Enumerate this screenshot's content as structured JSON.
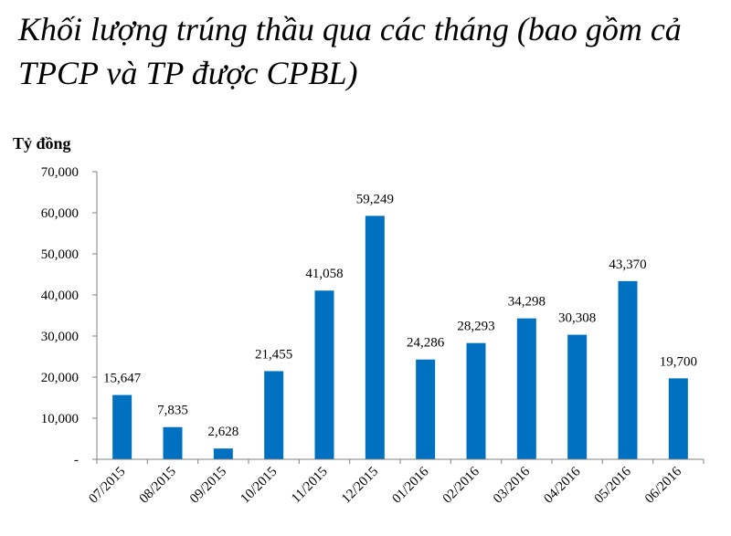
{
  "chart_data": {
    "type": "bar",
    "title": "Khối lượng trúng thầu qua các tháng (bao gồm cả TPCP và TP được CPBL)",
    "ylabel": "Tỷ đồng",
    "xlabel": "",
    "categories": [
      "07/2015",
      "08/2015",
      "09/2015",
      "10/2015",
      "11/2015",
      "12/2015",
      "01/2016",
      "02/2016",
      "03/2016",
      "04/2016",
      "05/2016",
      "06/2016"
    ],
    "values": [
      15647,
      7835,
      2628,
      21455,
      41058,
      59249,
      24286,
      28293,
      34298,
      30308,
      43370,
      19700
    ],
    "value_labels": [
      "15,647",
      "7,835",
      "2,628",
      "21,455",
      "41,058",
      "59,249",
      "24,286",
      "28,293",
      "34,298",
      "30,308",
      "43,370",
      "19,700"
    ],
    "ylim": [
      0,
      70000
    ],
    "y_ticks": [
      0,
      10000,
      20000,
      30000,
      40000,
      50000,
      60000,
      70000
    ],
    "y_tick_labels": [
      "-",
      "10,000",
      "20,000",
      "30,000",
      "40,000",
      "50,000",
      "60,000",
      "70,000"
    ],
    "bar_color": "#0070C0",
    "grid": false,
    "legend": "none"
  }
}
